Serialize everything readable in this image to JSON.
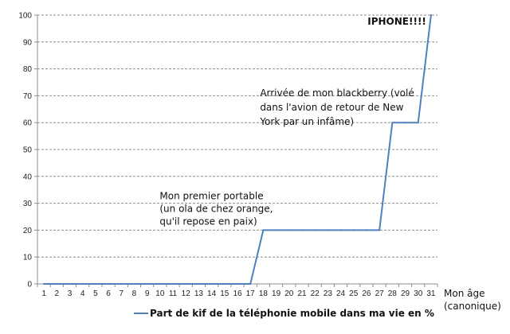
{
  "chart_data": {
    "type": "line",
    "x": [
      1,
      2,
      3,
      4,
      5,
      6,
      7,
      8,
      9,
      10,
      11,
      12,
      13,
      14,
      15,
      16,
      17,
      18,
      19,
      20,
      21,
      22,
      23,
      24,
      25,
      26,
      27,
      28,
      29,
      30,
      31
    ],
    "series": [
      {
        "name": "Part de kif de la téléphonie mobile dans ma vie en %",
        "values": [
          0,
          0,
          0,
          0,
          0,
          0,
          0,
          0,
          0,
          0,
          0,
          0,
          0,
          0,
          0,
          0,
          0,
          20,
          20,
          20,
          20,
          20,
          20,
          20,
          20,
          20,
          20,
          60,
          60,
          60,
          100
        ],
        "color": "#4f81bd"
      }
    ],
    "xlabel_lines": [
      "Mon âge",
      "(canonique)"
    ],
    "ylim": [
      0,
      100
    ],
    "yticks": [
      0,
      10,
      20,
      30,
      40,
      50,
      60,
      70,
      80,
      90,
      100
    ],
    "grid": "horizontal-dashed",
    "legend": "bottom",
    "annotations": [
      {
        "at_x": 18,
        "lines": [
          "Mon premier portable",
          "(un ola de chez orange,",
          "qu'il repose en paix)"
        ],
        "bold": false
      },
      {
        "at_x": 28,
        "lines": [
          "Arrivée de mon blackberry (volé",
          "dans l'avion de retour de New",
          "York par un infâme)"
        ],
        "bold": false
      },
      {
        "at_x": 31,
        "lines": [
          "IPHONE!!!!"
        ],
        "bold": true
      }
    ]
  }
}
